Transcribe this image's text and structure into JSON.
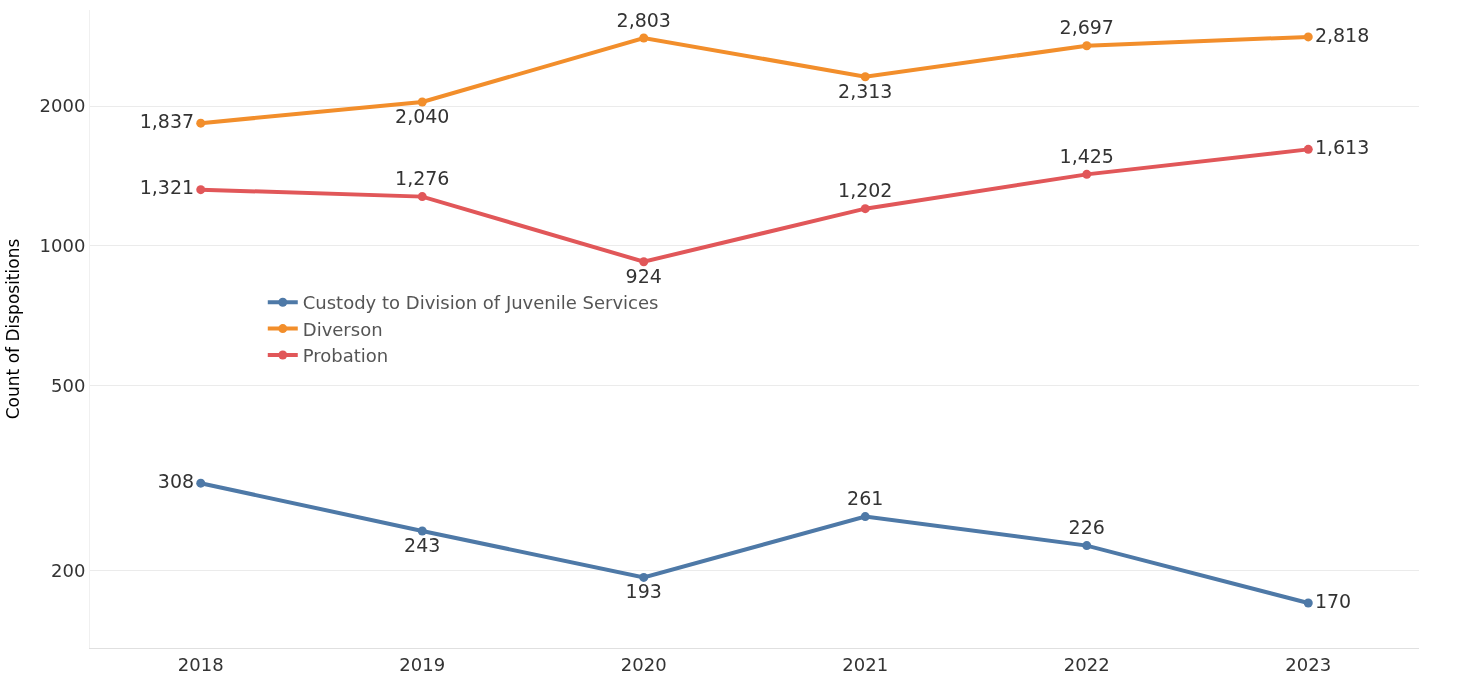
{
  "chart_data": {
    "type": "line",
    "ylabel": "Count of Dispositions",
    "categories": [
      "2018",
      "2019",
      "2020",
      "2021",
      "2022",
      "2023"
    ],
    "series": [
      {
        "name": "Custody to Division of Juvenile Services",
        "color": "#4e79a7",
        "values": [
          308,
          243,
          193,
          261,
          226,
          170
        ],
        "value_labels": [
          "308",
          "243",
          "193",
          "261",
          "226",
          "170"
        ]
      },
      {
        "name": "Diverson",
        "color": "#f28e2b",
        "values": [
          1837,
          2040,
          2803,
          2313,
          2697,
          2818
        ],
        "value_labels": [
          "1,837",
          "2,040",
          "2,803",
          "2,313",
          "2,697",
          "2,818"
        ]
      },
      {
        "name": "Probation",
        "color": "#e15759",
        "values": [
          1321,
          1276,
          924,
          1202,
          1425,
          1613
        ],
        "value_labels": [
          "1,321",
          "1,276",
          "924",
          "1,202",
          "1,425",
          "1,613"
        ]
      }
    ],
    "log": "y",
    "ylim": [
      136,
      3220
    ],
    "yticks": [
      200,
      500,
      1000,
      2000
    ],
    "grid": "y",
    "legend": "left",
    "marker": "circle",
    "line_style": "solid"
  }
}
